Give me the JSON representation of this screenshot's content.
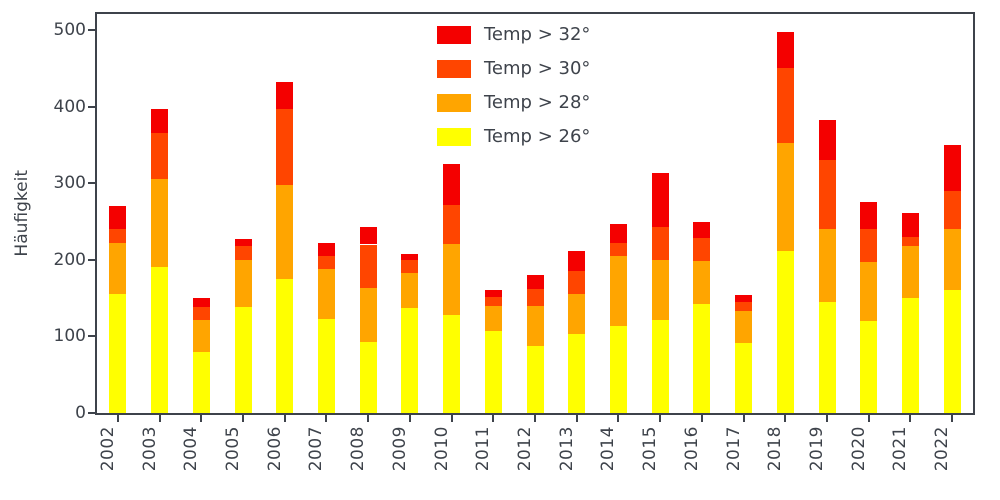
{
  "chart_data": {
    "type": "bar",
    "stacked": true,
    "title": "",
    "xlabel": "",
    "ylabel": "Häufigkeit",
    "ylim": [
      0,
      500
    ],
    "yticks": [
      0,
      100,
      200,
      300,
      400,
      500
    ],
    "grid": false,
    "legend_position": "upper center-left inside plot",
    "axis_color": "#3e434b",
    "categories": [
      "2002",
      "2003",
      "2004",
      "2005",
      "2006",
      "2007",
      "2008",
      "2009",
      "2010",
      "2011",
      "2012",
      "2013",
      "2014",
      "2015",
      "2016",
      "2017",
      "2018",
      "2019",
      "2020",
      "2021",
      "2022"
    ],
    "series": [
      {
        "name": "Temp > 26°",
        "color": "#ffff00",
        "values": [
          155,
          190,
          80,
          138,
          175,
          123,
          93,
          137,
          128,
          107,
          88,
          103,
          113,
          122,
          142,
          92,
          212,
          145,
          120,
          150,
          160
        ]
      },
      {
        "name": "Temp > 28°",
        "color": "#ffa500",
        "values": [
          67,
          115,
          42,
          62,
          123,
          65,
          70,
          46,
          92,
          33,
          52,
          52,
          92,
          78,
          56,
          41,
          140,
          95,
          77,
          68,
          80
        ]
      },
      {
        "name": "Temp > 30°",
        "color": "#ff4500",
        "values": [
          18,
          60,
          16,
          18,
          99,
          17,
          57,
          17,
          52,
          12,
          22,
          30,
          17,
          43,
          30,
          12,
          98,
          90,
          43,
          12,
          50
        ]
      },
      {
        "name": "Temp > 32°",
        "color": "#f40000",
        "values": [
          30,
          32,
          12,
          9,
          35,
          17,
          23,
          8,
          53,
          8,
          18,
          27,
          25,
          70,
          22,
          9,
          47,
          53,
          35,
          31,
          60
        ]
      }
    ],
    "legend": [
      {
        "label": "Temp > 32°",
        "color": "#f40000"
      },
      {
        "label": "Temp > 30°",
        "color": "#ff4500"
      },
      {
        "label": "Temp > 28°",
        "color": "#ffa500"
      },
      {
        "label": "Temp > 26°",
        "color": "#ffff00"
      }
    ]
  }
}
